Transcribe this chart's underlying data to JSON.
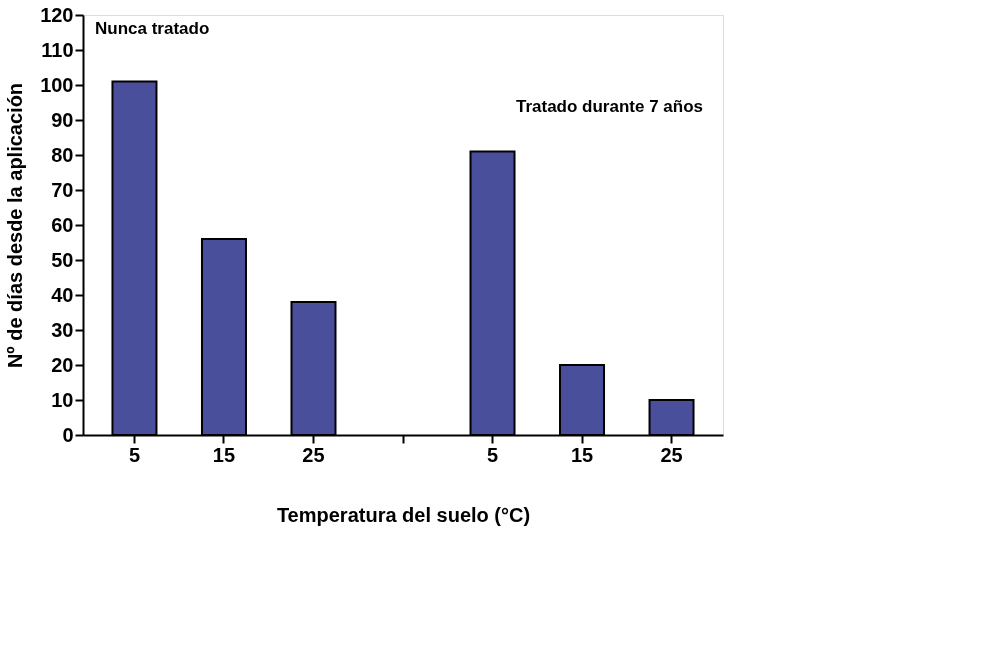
{
  "chart_data": {
    "type": "bar",
    "xlabel": "Temperatura del suelo (°C)",
    "ylabel": "Nº de días desde la aplicación",
    "categories": [
      "5",
      "15",
      "25",
      null,
      "5",
      "15",
      "25"
    ],
    "values": [
      101,
      56,
      38,
      null,
      81,
      20,
      10
    ],
    "color": "#4a4f9c",
    "ylim": [
      0,
      120
    ],
    "yticks": [
      0,
      10,
      20,
      30,
      40,
      50,
      60,
      70,
      80,
      90,
      100,
      110,
      120
    ],
    "grid": false,
    "annotations": [
      "Nunca tratado",
      "Tratado durante 7 años"
    ]
  }
}
